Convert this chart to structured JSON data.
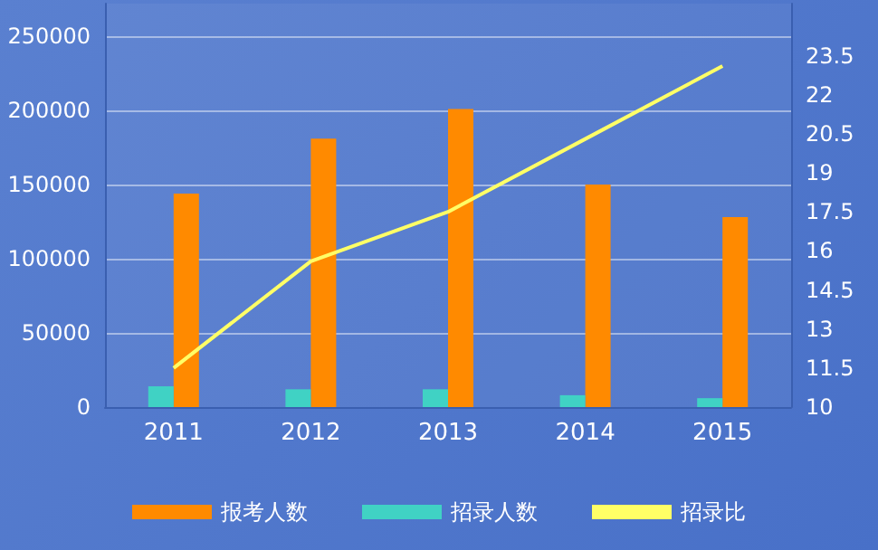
{
  "chart_data": {
    "type": "bar",
    "categories": [
      "2011",
      "2012",
      "2013",
      "2014",
      "2015"
    ],
    "series": [
      {
        "name": "报考人数",
        "color": "#ff8a00",
        "values": [
          144000,
          181000,
          201000,
          150000,
          128000
        ]
      },
      {
        "name": "招录人数",
        "color": "#40d2c4",
        "values": [
          14000,
          12000,
          12000,
          8000,
          6000
        ]
      },
      {
        "name": "招录比",
        "type": "line",
        "axis": "y2",
        "color": "#ffff66",
        "values": [
          11.5,
          15.6,
          17.5,
          20.3,
          23.1
        ]
      }
    ],
    "ylim": [
      0,
      272000
    ],
    "yticks": [
      0,
      50000,
      100000,
      150000,
      200000,
      250000
    ],
    "y2lim": [
      10,
      25.5
    ],
    "y2ticks": [
      10,
      11.5,
      13,
      14.5,
      16,
      17.5,
      19,
      20.5,
      22,
      23.5
    ],
    "grid": "y",
    "legend": "bottom",
    "marker": "none"
  }
}
